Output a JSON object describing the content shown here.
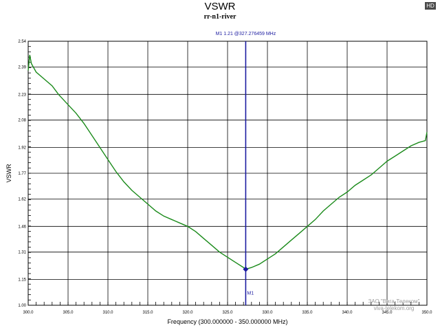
{
  "badge": "HD",
  "watermark": {
    "company": "ЗАО \"Вига-Телеком\"",
    "site": "viva-telekom.org"
  },
  "chart_data": {
    "type": "line",
    "title": "VSWR",
    "subtitle": "rr-n1-river",
    "xlabel": "Frequency (300.000000 - 350.000000 MHz)",
    "ylabel": "VSWR",
    "xlim": [
      300,
      350
    ],
    "ylim": [
      1.0,
      2.54
    ],
    "x_ticks": [
      300,
      305,
      310,
      315,
      320,
      325,
      330,
      335,
      340,
      345,
      350
    ],
    "x_tick_labels": [
      "300.0",
      "305.0",
      "310.0",
      "315.0",
      "320.0",
      "325.0",
      "330.0",
      "335.0",
      "340.0",
      "345.0",
      "350.0"
    ],
    "y_ticks": [
      1.0,
      1.15,
      1.31,
      1.46,
      1.62,
      1.77,
      1.92,
      2.08,
      2.23,
      2.39,
      2.54
    ],
    "y_tick_labels": [
      "1.00",
      "1.15",
      "1.31",
      "1.46",
      "1.62",
      "1.77",
      "1.92",
      "2.08",
      "2.23",
      "2.39",
      "2.54"
    ],
    "grid": true,
    "series": [
      {
        "color": "#1a8a1a",
        "x": [
          300.0,
          300.2,
          300.4,
          301,
          302,
          303,
          303.8,
          304,
          305,
          306,
          307,
          308,
          309,
          310,
          311,
          312,
          313,
          314,
          315,
          316,
          317,
          318,
          319,
          320,
          321,
          322,
          323,
          324,
          325,
          326,
          327,
          327.28,
          328,
          329,
          330,
          331,
          332,
          333,
          334,
          335,
          336,
          337,
          338,
          339,
          340,
          341,
          342,
          343,
          344,
          345,
          346,
          347,
          348,
          349,
          349.8,
          350.0
        ],
        "values": [
          2.37,
          2.46,
          2.41,
          2.36,
          2.32,
          2.28,
          2.23,
          2.22,
          2.17,
          2.12,
          2.06,
          1.99,
          1.92,
          1.85,
          1.78,
          1.72,
          1.67,
          1.63,
          1.59,
          1.55,
          1.52,
          1.5,
          1.48,
          1.46,
          1.43,
          1.39,
          1.35,
          1.31,
          1.28,
          1.25,
          1.22,
          1.21,
          1.22,
          1.24,
          1.27,
          1.3,
          1.34,
          1.38,
          1.42,
          1.46,
          1.5,
          1.55,
          1.59,
          1.63,
          1.66,
          1.7,
          1.73,
          1.76,
          1.8,
          1.84,
          1.87,
          1.9,
          1.93,
          1.95,
          1.96,
          2.01
        ]
      }
    ],
    "marker": {
      "name": "M1",
      "x": 327.276459,
      "y": 1.21,
      "label": "M1   1.21 @327.276459 MHz",
      "color": "#1a1aa0"
    }
  }
}
